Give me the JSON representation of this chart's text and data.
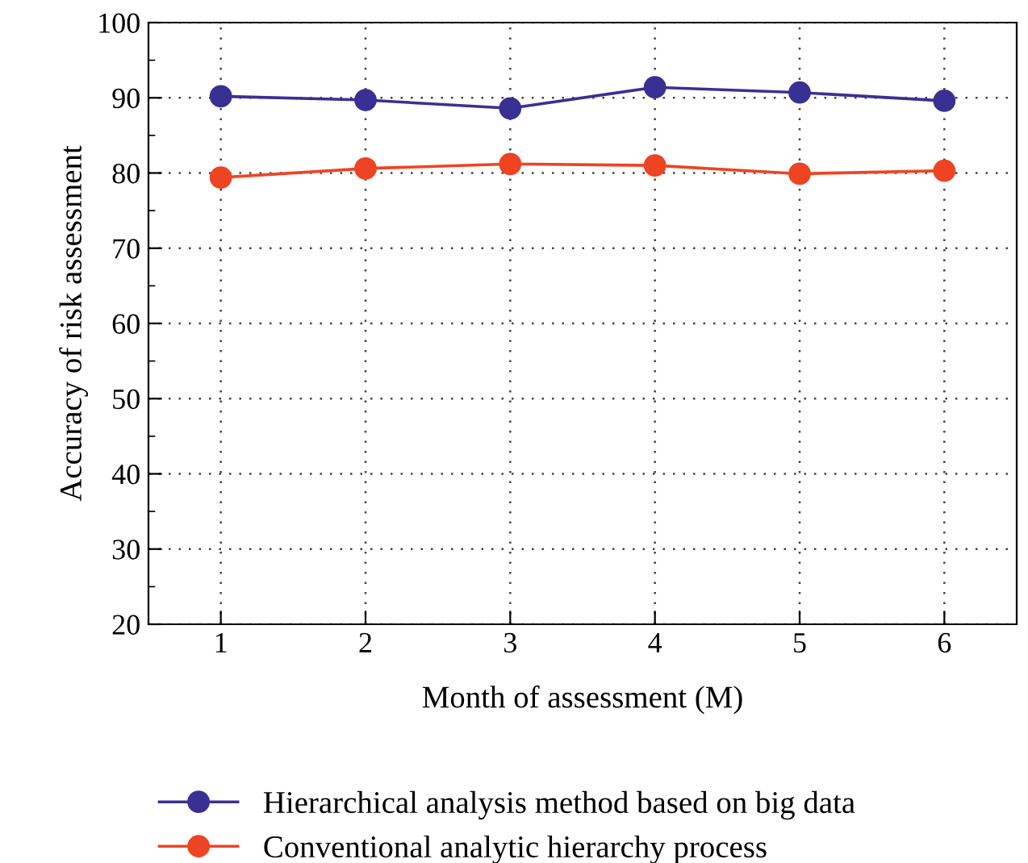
{
  "chart_data": {
    "type": "line",
    "xlabel": "Month of assessment (M)",
    "ylabel": "Accuracy of risk assessment",
    "x": [
      1,
      2,
      3,
      4,
      5,
      6
    ],
    "xlim": [
      0.5,
      6.5
    ],
    "xticks": [
      1,
      2,
      3,
      4,
      5,
      6
    ],
    "ylim": [
      20,
      100
    ],
    "yticks": [
      20,
      30,
      40,
      50,
      60,
      70,
      80,
      90,
      100
    ],
    "series": [
      {
        "name": "Hierarchical analysis method based on big data",
        "color": "#3a3093",
        "values": [
          90.2,
          89.7,
          88.6,
          91.4,
          90.7,
          89.6
        ]
      },
      {
        "name": "Conventional analytic hierarchy process",
        "color": "#ee4423",
        "values": [
          79.4,
          80.6,
          81.2,
          81.0,
          79.9,
          80.3
        ]
      }
    ],
    "marker": "circle",
    "line_style": "solid",
    "grid": true,
    "legend": "bottom"
  }
}
